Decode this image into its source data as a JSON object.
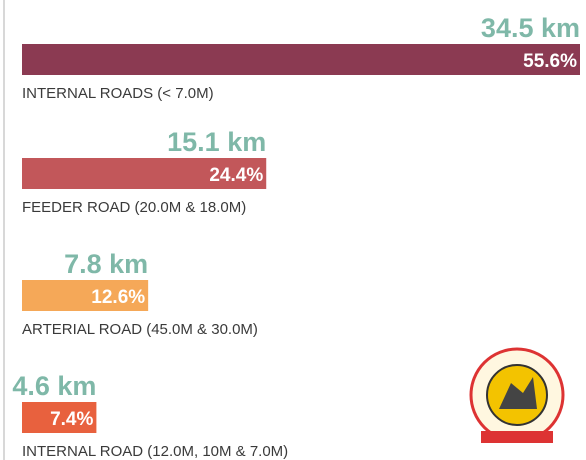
{
  "chart_data": {
    "type": "bar",
    "orientation": "horizontal",
    "categories": [
      "INTERNAL ROADS (< 7.0M)",
      "FEEDER ROAD (20.0M & 18.0M)",
      "ARTERIAL ROAD (45.0M & 30.0M)",
      "INTERNAL ROAD (12.0M, 10M & 7.0M)"
    ],
    "values": [
      34.5,
      15.1,
      7.8,
      4.6
    ],
    "value_labels": [
      "34.5 km",
      "15.1 km",
      "7.8 km",
      "4.6 km"
    ],
    "shares": [
      55.6,
      24.4,
      12.6,
      7.4
    ],
    "share_labels": [
      "55.6%",
      "24.4%",
      "12.6%",
      "7.4%"
    ],
    "colors": [
      "#8b3a52",
      "#c2575a",
      "#f5a858",
      "#e8613e"
    ]
  }
}
